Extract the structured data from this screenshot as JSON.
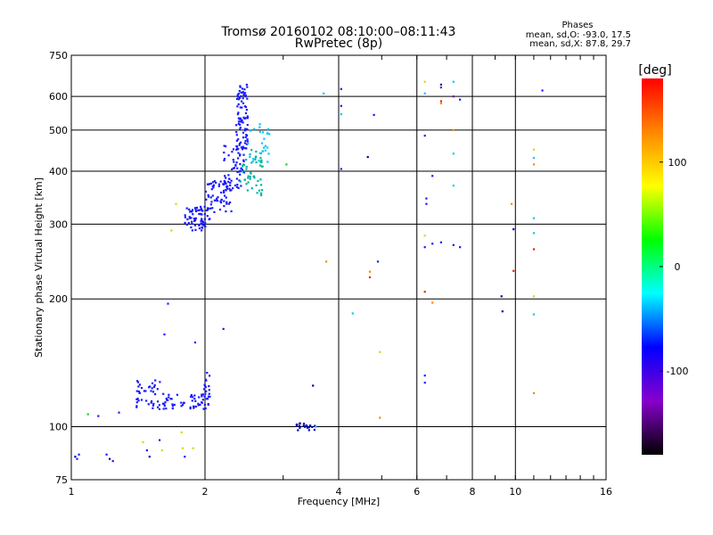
{
  "chart_data": {
    "type": "scatter",
    "title": "Tromsø 20160102 08:10:00–08:11:43",
    "subtitle": "RwPretec (8p)",
    "xlabel": "Frequency [MHz]",
    "ylabel": "Stationary phase Virtual Height [km]",
    "x_scale": "log",
    "y_scale": "log",
    "xlim": [
      1,
      16
    ],
    "ylim": [
      75,
      750
    ],
    "x_ticks": [
      1,
      2,
      4,
      6,
      8,
      10,
      16
    ],
    "y_ticks": [
      75,
      100,
      200,
      300,
      400,
      500,
      600,
      750
    ],
    "grid": true,
    "phase_header": "Phases",
    "phase_stats": [
      "mean, sd,O: -93.0, 17.5",
      "mean, sd,X:  87.8, 29.7"
    ],
    "colorbar": {
      "label": "[deg]",
      "range": [
        -180,
        180
      ],
      "ticks": [
        100,
        0,
        -100
      ],
      "colors": [
        "#000000",
        "#8800cc",
        "#0000ff",
        "#00ffff",
        "#00ff00",
        "#ffff00",
        "#ff8800",
        "#ff0000"
      ]
    },
    "point_colors": {
      "blue": "#1a1aff",
      "navy": "#0000aa",
      "cyan": "#00c8ff",
      "teal": "#00b4a0",
      "green": "#22cc22",
      "yellow": "#d8d800",
      "orange": "#ff8800",
      "red": "#ee2200",
      "purple": "#6a00b0"
    },
    "clusters": [
      {
        "x": [
          1.8,
          2.05
        ],
        "y": [
          290,
          330
        ],
        "n": 70,
        "color": "blue"
      },
      {
        "x": [
          2.0,
          2.3
        ],
        "y": [
          320,
          380
        ],
        "n": 60,
        "color": "blue"
      },
      {
        "x": [
          2.2,
          2.45
        ],
        "y": [
          360,
          460
        ],
        "n": 60,
        "color": "blue"
      },
      {
        "x": [
          2.35,
          2.5
        ],
        "y": [
          450,
          640
        ],
        "n": 90,
        "color": "blue"
      },
      {
        "x": [
          2.4,
          2.7
        ],
        "y": [
          350,
          450
        ],
        "n": 50,
        "color": "teal"
      },
      {
        "x": [
          2.5,
          2.8
        ],
        "y": [
          420,
          520
        ],
        "n": 25,
        "color": "cyan"
      },
      {
        "x": [
          1.4,
          1.65
        ],
        "y": [
          110,
          130
        ],
        "n": 45,
        "color": "blue"
      },
      {
        "x": [
          1.6,
          1.8
        ],
        "y": [
          110,
          120
        ],
        "n": 20,
        "color": "blue"
      },
      {
        "x": [
          1.85,
          2.05
        ],
        "y": [
          110,
          120
        ],
        "n": 35,
        "color": "blue"
      },
      {
        "x": [
          1.95,
          2.05
        ],
        "y": [
          120,
          135
        ],
        "n": 10,
        "color": "blue"
      },
      {
        "x": [
          3.2,
          3.55
        ],
        "y": [
          98,
          102
        ],
        "n": 22,
        "color": "navy"
      }
    ],
    "points": [
      [
        1.02,
        85,
        "navy"
      ],
      [
        1.04,
        86,
        "blue"
      ],
      [
        1.03,
        84,
        "blue"
      ],
      [
        1.09,
        107,
        "green"
      ],
      [
        1.15,
        106,
        "blue"
      ],
      [
        1.2,
        86,
        "blue"
      ],
      [
        1.22,
        84,
        "navy"
      ],
      [
        1.24,
        83,
        "blue"
      ],
      [
        1.28,
        108,
        "blue"
      ],
      [
        1.45,
        92,
        "yellow"
      ],
      [
        1.48,
        88,
        "blue"
      ],
      [
        1.5,
        85,
        "navy"
      ],
      [
        1.58,
        93,
        "blue"
      ],
      [
        1.6,
        88,
        "yellow"
      ],
      [
        1.62,
        165,
        "blue"
      ],
      [
        1.65,
        195,
        "blue"
      ],
      [
        1.68,
        290,
        "yellow"
      ],
      [
        1.72,
        335,
        "yellow"
      ],
      [
        1.77,
        97,
        "yellow"
      ],
      [
        1.78,
        89,
        "yellow"
      ],
      [
        1.8,
        85,
        "blue"
      ],
      [
        1.88,
        89,
        "yellow"
      ],
      [
        1.9,
        158,
        "blue"
      ],
      [
        2.0,
        125,
        "blue"
      ],
      [
        2.2,
        170,
        "blue"
      ],
      [
        3.05,
        415,
        "green"
      ],
      [
        3.5,
        125,
        "navy"
      ],
      [
        3.7,
        610,
        "cyan"
      ],
      [
        3.75,
        245,
        "orange"
      ],
      [
        3.55,
        100,
        "cyan"
      ],
      [
        4.05,
        625,
        "blue"
      ],
      [
        4.05,
        570,
        "blue"
      ],
      [
        4.05,
        545,
        "cyan"
      ],
      [
        4.05,
        405,
        "blue"
      ],
      [
        4.3,
        185,
        "cyan"
      ],
      [
        4.65,
        432,
        "navy"
      ],
      [
        4.7,
        232,
        "orange"
      ],
      [
        4.7,
        225,
        "red"
      ],
      [
        4.8,
        543,
        "blue"
      ],
      [
        4.9,
        245,
        "blue"
      ],
      [
        4.95,
        150,
        "yellow"
      ],
      [
        4.95,
        105,
        "orange"
      ],
      [
        6.25,
        650,
        "yellow"
      ],
      [
        6.25,
        610,
        "cyan"
      ],
      [
        6.25,
        485,
        "blue"
      ],
      [
        6.25,
        282,
        "yellow"
      ],
      [
        6.25,
        265,
        "blue"
      ],
      [
        6.25,
        132,
        "blue"
      ],
      [
        6.25,
        127,
        "blue"
      ],
      [
        6.25,
        208,
        "red"
      ],
      [
        6.3,
        345,
        "blue"
      ],
      [
        6.3,
        335,
        "blue"
      ],
      [
        6.5,
        390,
        "blue"
      ],
      [
        6.5,
        270,
        "blue"
      ],
      [
        6.5,
        196,
        "orange"
      ],
      [
        6.8,
        640,
        "navy"
      ],
      [
        6.8,
        630,
        "purple"
      ],
      [
        6.8,
        585,
        "red"
      ],
      [
        6.8,
        578,
        "orange"
      ],
      [
        6.8,
        272,
        "blue"
      ],
      [
        7.25,
        650,
        "cyan"
      ],
      [
        7.25,
        600,
        "purple"
      ],
      [
        7.25,
        500,
        "orange"
      ],
      [
        7.25,
        440,
        "cyan"
      ],
      [
        7.25,
        370,
        "cyan"
      ],
      [
        7.25,
        268,
        "blue"
      ],
      [
        7.5,
        590,
        "blue"
      ],
      [
        7.5,
        265,
        "blue"
      ],
      [
        9.3,
        203,
        "navy"
      ],
      [
        9.35,
        187,
        "navy"
      ],
      [
        9.8,
        335,
        "orange"
      ],
      [
        9.9,
        292,
        "navy"
      ],
      [
        9.9,
        233,
        "red"
      ],
      [
        11.0,
        450,
        "yellow"
      ],
      [
        11.0,
        430,
        "cyan"
      ],
      [
        11.0,
        415,
        "orange"
      ],
      [
        11.0,
        310,
        "cyan"
      ],
      [
        11.0,
        286,
        "cyan"
      ],
      [
        11.0,
        262,
        "red"
      ],
      [
        11.0,
        203,
        "yellow"
      ],
      [
        11.0,
        184,
        "cyan"
      ],
      [
        11.0,
        120,
        "orange"
      ],
      [
        11.5,
        620,
        "blue"
      ]
    ]
  }
}
